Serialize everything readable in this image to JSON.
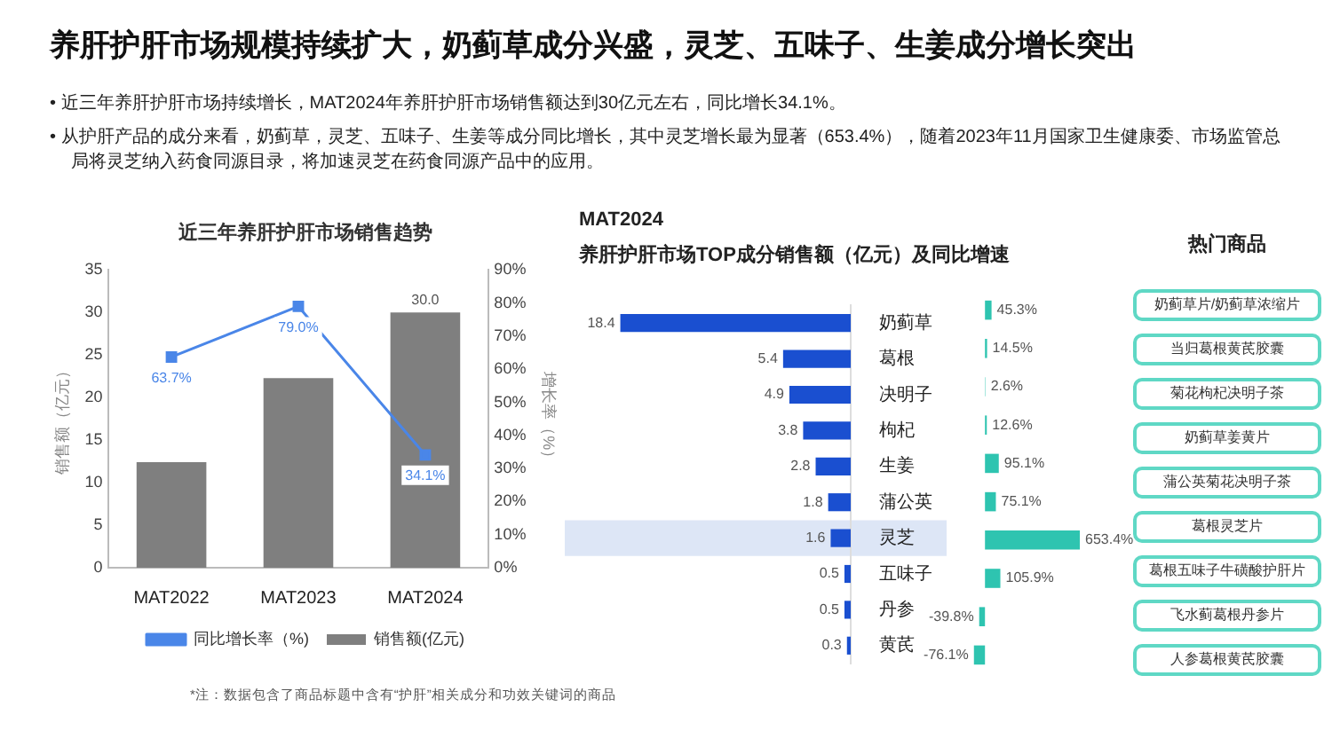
{
  "chart_data": [
    {
      "type": "other",
      "title": "养肝护肝市场规模持续扩大，奶蓟草成分兴盛，灵芝、五味子、生姜成分增长突出",
      "annotations": [
        "• 近三年养肝护肝市场持续增长，MAT2024年养肝护肝市场销售额达到30亿元左右，同比增长34.1%。",
        "• 从护肝产品的成分来看，奶蓟草，灵芝、五味子、生姜等成分同比增长，其中灵芝增长最为显著（653.4%），随着2023年11月国家卫生健康委、市场监管总局将灵芝纳入药食同源目录，将加速灵芝在药食同源产品中的应用。"
      ]
    },
    {
      "type": "bar",
      "title": "近三年养肝护肝市场销售趋势",
      "ylabel": "销售额（亿元）",
      "y2label": "增长率（%）",
      "categories": [
        "MAT2022",
        "MAT2023",
        "MAT2024"
      ],
      "series": [
        {
          "name": "销售额(亿元)",
          "type": "bar",
          "color": "#7f7f7f",
          "values": [
            12.4,
            22.3,
            30.0
          ],
          "value_labels": [
            null,
            null,
            "30.0"
          ]
        },
        {
          "name": "同比增长率（%)",
          "type": "line",
          "axis": "y2",
          "color": "#4a86e8",
          "marker": "square",
          "values": [
            63.7,
            79.0,
            34.1
          ],
          "value_labels": [
            "63.7%",
            "79.0%",
            "34.1%"
          ]
        }
      ],
      "ylim": [
        0,
        35
      ],
      "yticks": [
        0,
        5,
        10,
        15,
        20,
        25,
        30,
        35
      ],
      "y2lim": [
        0,
        90
      ],
      "y2ticks": [
        {
          "value": 0,
          "label": "0%"
        },
        {
          "value": 10,
          "label": "10%"
        },
        {
          "value": 20,
          "label": "20%"
        },
        {
          "value": 30,
          "label": "30%"
        },
        {
          "value": 40,
          "label": "40%"
        },
        {
          "value": 50,
          "label": "50%"
        },
        {
          "value": 60,
          "label": "60%"
        },
        {
          "value": 70,
          "label": "70%"
        },
        {
          "value": 80,
          "label": "80%"
        },
        {
          "value": 90,
          "label": "90%"
        }
      ],
      "grid": false,
      "legend": "bottom",
      "annotations": [
        "*注：数据包含了商品标题中含有“护肝”相关成分和功效关键词的商品"
      ]
    },
    {
      "type": "bar",
      "orientation": "horizontal",
      "title": "MAT2024",
      "subtitle": "养肝护肝市场TOP成分销售额（亿元）及同比增速",
      "categories": [
        "奶蓟草",
        "葛根",
        "决明子",
        "枸杞",
        "生姜",
        "蒲公英",
        "灵芝",
        "五味子",
        "丹参",
        "黄芪"
      ],
      "values": [
        18.4,
        5.4,
        4.9,
        3.8,
        2.8,
        1.8,
        1.6,
        0.5,
        0.5,
        0.3
      ],
      "color": "#1a4fd0",
      "data_labels": true,
      "tick_labels": "y",
      "grid": false,
      "legend": false,
      "bands": [
        {
          "axis": "y",
          "from": "灵芝",
          "to": "灵芝",
          "color": "#dde6f6"
        }
      ]
    },
    {
      "type": "bar",
      "orientation": "horizontal",
      "categories": [
        null,
        null,
        null,
        null,
        null,
        null,
        null,
        null,
        null,
        null
      ],
      "values": [
        45.3,
        14.5,
        2.6,
        12.6,
        95.1,
        75.1,
        653.4,
        105.9,
        -39.8,
        -76.1
      ],
      "value_labels": [
        "45.3%",
        "14.5%",
        "2.6%",
        "12.6%",
        "95.1%",
        "75.1%",
        "653.4%",
        "105.9%",
        "-39.8%",
        "-76.1%"
      ],
      "color": "#2ec4b0",
      "tick_labels": false,
      "grid": false,
      "legend": false
    },
    {
      "type": "other",
      "title": "热门商品",
      "annotations": [
        "奶蓟草片/奶蓟草浓缩片",
        "当归葛根黄芪胶囊",
        "菊花枸杞决明子茶",
        "奶蓟草姜黄片",
        "蒲公英菊花决明子茶",
        "葛根灵芝片",
        "葛根五味子牛磺酸护肝片",
        "飞水蓟葛根丹参片",
        "人参葛根黄芪胶囊"
      ]
    }
  ]
}
